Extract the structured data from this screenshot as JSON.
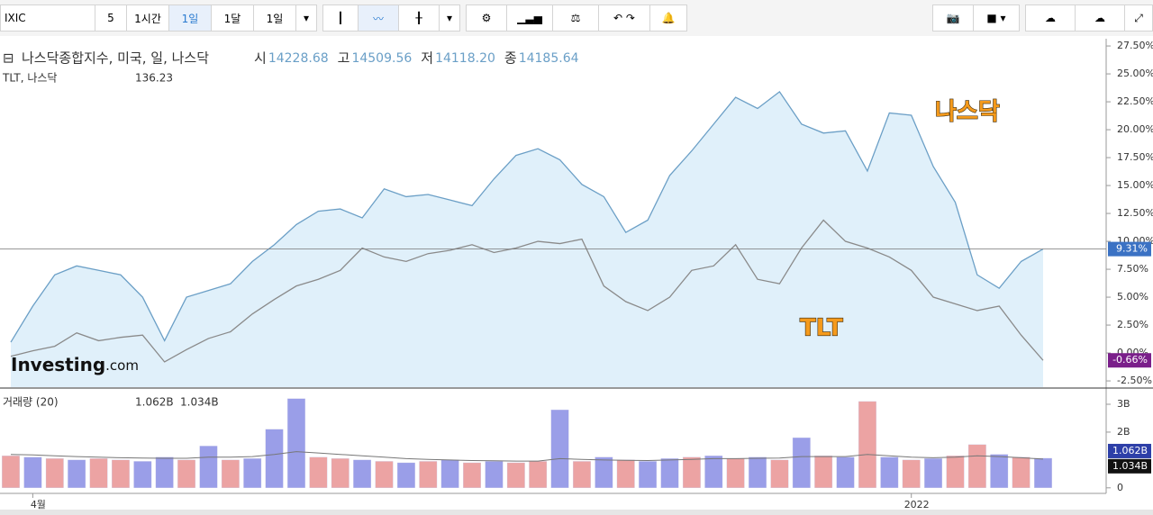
{
  "toolbar": {
    "symbol": "IXIC",
    "intervals": [
      "5",
      "1시간",
      "1일",
      "1달",
      "1일"
    ],
    "active": 2
  },
  "legend": {
    "title": "나스닥종합지수, 미국, 일, 나스닥",
    "fields": [
      [
        "시",
        "14228.68"
      ],
      [
        "고",
        "14509.56"
      ],
      [
        "저",
        "14118.20"
      ],
      [
        "종",
        "14185.64"
      ]
    ],
    "second_title": "TLT, 나스닥",
    "second_value": "136.23",
    "volume_title": "거래량 (20)",
    "volume_values": [
      "1.062B",
      "1.034B"
    ]
  },
  "logo": {
    "brand": "Investing",
    "suffix": ".com"
  },
  "chart_data": [
    {
      "type": "line",
      "categories": [
        null,
        "4월",
        null,
        null,
        null,
        null,
        null,
        null,
        null,
        null,
        null,
        null,
        null,
        null,
        null,
        null,
        null,
        null,
        null,
        null,
        null,
        null,
        null,
        null,
        null,
        null,
        null,
        null,
        null,
        null,
        null,
        null,
        null,
        null,
        null,
        null,
        null,
        null,
        null,
        null,
        null,
        "2022",
        null,
        null,
        null,
        null,
        null,
        null
      ],
      "series": [
        {
          "name": "나스닥",
          "color": "#6b9fc6",
          "fill": "#e0f0fa",
          "last_value_label": "9.31%",
          "values": [
            0.97,
            4.2,
            7.0,
            7.8,
            7.4,
            7.0,
            5.0,
            1.1,
            5.0,
            5.6,
            6.2,
            8.2,
            9.7,
            11.5,
            12.7,
            12.9,
            12.1,
            14.7,
            14.0,
            14.2,
            13.7,
            13.2,
            15.6,
            17.7,
            18.3,
            17.3,
            15.1,
            14.0,
            10.8,
            11.9,
            15.9,
            18.1,
            20.5,
            22.9,
            21.9,
            23.4,
            20.5,
            19.7,
            19.9,
            16.3,
            21.5,
            21.3,
            16.7,
            13.5,
            7.0,
            5.8,
            8.2,
            9.31
          ]
        },
        {
          "name": "TLT",
          "color": "#8a8a8a",
          "last_value_label": "-0.66%",
          "values": [
            -0.3,
            0.2,
            0.6,
            1.8,
            1.1,
            1.4,
            1.6,
            -0.8,
            0.3,
            1.3,
            1.9,
            3.5,
            4.8,
            6.0,
            6.6,
            7.4,
            9.4,
            8.6,
            8.2,
            8.9,
            9.2,
            9.7,
            9.0,
            9.4,
            10.0,
            9.8,
            10.2,
            6.0,
            4.6,
            3.8,
            5.0,
            7.4,
            7.8,
            9.7,
            6.6,
            6.2,
            9.4,
            11.9,
            10.0,
            9.4,
            8.6,
            7.4,
            5.0,
            4.4,
            3.8,
            4.2,
            1.6,
            -0.66
          ]
        }
      ],
      "ylim": [
        -3.06,
        28.15
      ],
      "yticks": [
        {
          "value": 27.5,
          "label": "27.50%"
        },
        {
          "value": 25,
          "label": "25.00%"
        },
        {
          "value": 22.5,
          "label": "22.50%"
        },
        {
          "value": 20,
          "label": "20.00%"
        },
        {
          "value": 17.5,
          "label": "17.50%"
        },
        {
          "value": 15,
          "label": "15.00%"
        },
        {
          "value": 12.5,
          "label": "12.50%"
        },
        {
          "value": 10,
          "label": "10.00%"
        },
        {
          "value": 7.5,
          "label": "7.50%"
        },
        {
          "value": 5,
          "label": "5.00%"
        },
        {
          "value": 2.5,
          "label": "2.50%"
        },
        {
          "value": 0,
          "label": "0.00%"
        },
        {
          "value": -2.5,
          "label": "-2.50%"
        }
      ]
    },
    {
      "type": "bar",
      "series": [
        {
          "name": "거래량",
          "colors": [
            "#eca3a3",
            "#9a9ee8",
            "#eca3a3",
            "#9a9ee8",
            "#eca3a3",
            "#eca3a3",
            "#9a9ee8",
            "#9a9ee8",
            "#eca3a3",
            "#9a9ee8",
            "#eca3a3",
            "#9a9ee8",
            "#9a9ee8",
            "#9a9ee8",
            "#eca3a3",
            "#eca3a3",
            "#9a9ee8",
            "#eca3a3",
            "#9a9ee8",
            "#eca3a3",
            "#9a9ee8",
            "#eca3a3",
            "#9a9ee8",
            "#eca3a3",
            "#eca3a3",
            "#9a9ee8",
            "#eca3a3",
            "#9a9ee8",
            "#eca3a3",
            "#9a9ee8",
            "#9a9ee8",
            "#eca3a3",
            "#9a9ee8",
            "#eca3a3",
            "#9a9ee8",
            "#eca3a3",
            "#9a9ee8",
            "#eca3a3",
            "#9a9ee8",
            "#eca3a3",
            "#9a9ee8",
            "#eca3a3",
            "#9a9ee8",
            "#eca3a3",
            "#eca3a3",
            "#9a9ee8",
            "#eca3a3",
            "#9a9ee8"
          ],
          "values": [
            1.15,
            1.1,
            1.05,
            1.0,
            1.05,
            1.0,
            0.95,
            1.1,
            1.0,
            1.5,
            1.0,
            1.05,
            2.1,
            3.2,
            1.1,
            1.05,
            1.0,
            0.95,
            0.9,
            0.95,
            1.0,
            0.9,
            0.95,
            0.9,
            0.95,
            2.8,
            0.95,
            1.1,
            1.0,
            0.95,
            1.05,
            1.1,
            1.15,
            1.05,
            1.1,
            1.0,
            1.8,
            1.15,
            1.1,
            3.1,
            1.1,
            1.0,
            1.05,
            1.15,
            1.55,
            1.2,
            1.1,
            1.062
          ]
        },
        {
          "name": "MA",
          "color": "#777777",
          "values": [
            1.2,
            1.18,
            1.15,
            1.12,
            1.1,
            1.08,
            1.07,
            1.06,
            1.06,
            1.1,
            1.1,
            1.12,
            1.2,
            1.3,
            1.25,
            1.2,
            1.15,
            1.1,
            1.05,
            1.02,
            1.0,
            0.98,
            0.97,
            0.96,
            0.96,
            1.05,
            1.02,
            1.0,
            0.99,
            0.98,
            1.0,
            1.02,
            1.05,
            1.05,
            1.06,
            1.07,
            1.12,
            1.12,
            1.12,
            1.2,
            1.15,
            1.1,
            1.08,
            1.1,
            1.15,
            1.12,
            1.08,
            1.034
          ]
        }
      ],
      "last_value_labels": [
        "1.062B",
        "1.034B"
      ],
      "ylim": [
        -0.2,
        3.55
      ],
      "yticks": [
        0,
        {
          "value": 2,
          "label": "2B"
        },
        {
          "value": 3,
          "label": "3B"
        }
      ]
    }
  ]
}
